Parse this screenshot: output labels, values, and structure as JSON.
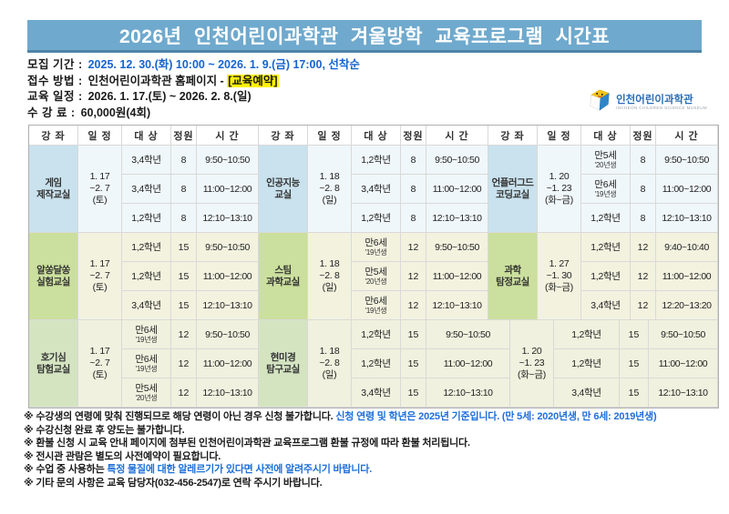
{
  "title": "2026년 인천어린이과학관 겨울방학 교육프로그램 시간표",
  "logo": {
    "name": "인천어린이과학관",
    "subtitle": "INCHEON CHILDREN SCIENCE MUSEUM"
  },
  "colors": {
    "titlebar": "#6FA9CD",
    "titlebar_border": "#4D85A8",
    "info_blue": "#1563CF",
    "note_blue": "#1E6FD9",
    "highlight_yellow": "#FFF200",
    "band1_course": "#C9E2ED",
    "band2_course": "#CBDF9E",
    "band3_course": "#D4E4C1"
  },
  "info": [
    {
      "label": "모집 기간 :",
      "segments": [
        {
          "text": "2025. 12. 30.(화) 10:00 ~ 2026. 1. 9.(금) 17:00, 선착순",
          "color": "#1563CF"
        }
      ]
    },
    {
      "label": "접수 방법 :",
      "segments": [
        {
          "text": "인천어린이과학관 홈페이지 - "
        },
        {
          "text": "[교육예약]",
          "highlight": true
        }
      ]
    },
    {
      "label": "교육 일정 :",
      "segments": [
        {
          "text": "2026. 1. 17.(토) ~ 2026. 2. 8.(일)"
        }
      ]
    },
    {
      "label": "수 강 료 :",
      "segments": [
        {
          "text": "60,000원(4회)"
        }
      ]
    }
  ],
  "table": {
    "headers": [
      "강 좌",
      "일 정",
      "대 상",
      "정원",
      "시 간"
    ],
    "bands": [
      {
        "blocks": [
          {
            "course": "게임\n제작교실",
            "schedule": "1. 17\n~2. 7\n(토)",
            "rows": [
              {
                "target": "3,4학년",
                "target_sub": "",
                "quota": "8",
                "time": "9:50~10:50"
              },
              {
                "target": "3,4학년",
                "target_sub": "",
                "quota": "8",
                "time": "11:00~12:00"
              },
              {
                "target": "1,2학년",
                "target_sub": "",
                "quota": "8",
                "time": "12:10~13:10"
              }
            ]
          },
          {
            "course": "인공지능\n교실",
            "schedule": "1. 18\n~2. 8\n(일)",
            "rows": [
              {
                "target": "1,2학년",
                "target_sub": "",
                "quota": "8",
                "time": "9:50~10:50"
              },
              {
                "target": "3,4학년",
                "target_sub": "",
                "quota": "8",
                "time": "11:00~12:00"
              },
              {
                "target": "1,2학년",
                "target_sub": "",
                "quota": "8",
                "time": "12:10~13:10"
              }
            ]
          },
          {
            "course": "언플러그드\n코딩교실",
            "schedule": "1. 20\n~1. 23\n(화~금)",
            "rows": [
              {
                "target": "만5세",
                "target_sub": "'20년생",
                "quota": "8",
                "time": "9:50~10:50"
              },
              {
                "target": "만6세",
                "target_sub": "'19년생",
                "quota": "8",
                "time": "11:00~12:00"
              },
              {
                "target": "1,2학년",
                "target_sub": "",
                "quota": "8",
                "time": "12:10~13:10"
              }
            ]
          }
        ]
      },
      {
        "blocks": [
          {
            "course": "알쏭달쏭\n실험교실",
            "schedule": "1. 17\n~2. 7\n(토)",
            "rows": [
              {
                "target": "1,2학년",
                "target_sub": "",
                "quota": "15",
                "time": "9:50~10:50"
              },
              {
                "target": "1,2학년",
                "target_sub": "",
                "quota": "15",
                "time": "11:00~12:00"
              },
              {
                "target": "3,4학년",
                "target_sub": "",
                "quota": "15",
                "time": "12:10~13:10"
              }
            ]
          },
          {
            "course": "스팀\n과학교실",
            "schedule": "1. 18\n~2. 8\n(일)",
            "rows": [
              {
                "target": "만6세",
                "target_sub": "'19년생",
                "quota": "12",
                "time": "9:50~10:50"
              },
              {
                "target": "만5세",
                "target_sub": "'20년생",
                "quota": "12",
                "time": "11:00~12:00"
              },
              {
                "target": "만6세",
                "target_sub": "'19년생",
                "quota": "12",
                "time": "12:10~13:10"
              }
            ]
          },
          {
            "course": "과학\n탐정교실",
            "schedule": "1. 27\n~1. 30\n(화~금)",
            "rows": [
              {
                "target": "1,2학년",
                "target_sub": "",
                "quota": "12",
                "time": "9:40~10:40"
              },
              {
                "target": "1,2학년",
                "target_sub": "",
                "quota": "12",
                "time": "11:00~12:00"
              },
              {
                "target": "3,4학년",
                "target_sub": "",
                "quota": "12",
                "time": "12:20~13:20"
              }
            ]
          }
        ]
      },
      {
        "blocks": [
          {
            "course": "호기심\n탐험교실",
            "schedule": "1. 17\n~2. 7\n(토)",
            "rows": [
              {
                "target": "만6세",
                "target_sub": "'19년생",
                "quota": "12",
                "time": "9:50~10:50"
              },
              {
                "target": "만6세",
                "target_sub": "'19년생",
                "quota": "12",
                "time": "11:00~12:00"
              },
              {
                "target": "만5세",
                "target_sub": "'20년생",
                "quota": "12",
                "time": "12:10~13:10"
              }
            ]
          },
          {
            "course": "현미경\n탐구교실",
            "schedule": "1. 18\n~2. 8\n(일)",
            "rows": [
              {
                "target": "1,2학년",
                "target_sub": "",
                "quota": "15",
                "time": "9:50~10:50"
              },
              {
                "target": "1,2학년",
                "target_sub": "",
                "quota": "15",
                "time": "11:00~12:00"
              },
              {
                "target": "3,4학년",
                "target_sub": "",
                "quota": "15",
                "time": "12:10~13:10"
              }
            ]
          },
          {
            "course": null,
            "schedule": "1. 20\n~1. 23\n(화~금)",
            "rows": [
              {
                "target": "1,2학년",
                "target_sub": "",
                "quota": "15",
                "time": "9:50~10:50"
              },
              {
                "target": "1,2학년",
                "target_sub": "",
                "quota": "15",
                "time": "11:00~12:00"
              },
              {
                "target": "3,4학년",
                "target_sub": "",
                "quota": "15",
                "time": "12:10~13:10"
              }
            ]
          }
        ]
      }
    ]
  },
  "notes": [
    {
      "segments": [
        {
          "text": "※ 수강생의 연령에 맞춰 진행되므로 해당 연령이 아닌 경우 신청 불가합니다. "
        },
        {
          "text": "신청 연령 및 학년은 2025년 기준입니다. (만 5세: 2020년생, 만 6세: 2019년생)",
          "color": "#1E6FD9"
        }
      ]
    },
    {
      "segments": [
        {
          "text": "※ 수강신청 완료 후 양도는 불가합니다."
        }
      ]
    },
    {
      "segments": [
        {
          "text": "※ 환불 신청 시 교육 안내 페이지에 첨부된 인천어린이과학관 교육프로그램 환불 규정에 따라 환불 처리됩니다."
        }
      ]
    },
    {
      "segments": [
        {
          "text": "※ 전시관 관람은 별도의 사전예약이 필요합니다."
        }
      ]
    },
    {
      "segments": [
        {
          "text": "※ 수업 중 사용하는 "
        },
        {
          "text": "특정 물질에 대한 알레르기가 있다면 사전에 알려주시기 바랍니다.",
          "color": "#1E6FD9"
        }
      ]
    },
    {
      "segments": [
        {
          "text": "※ 기타 문의 사항은 교육 담당자(032-456-2547)로 연락 주시기 바랍니다."
        }
      ]
    }
  ]
}
